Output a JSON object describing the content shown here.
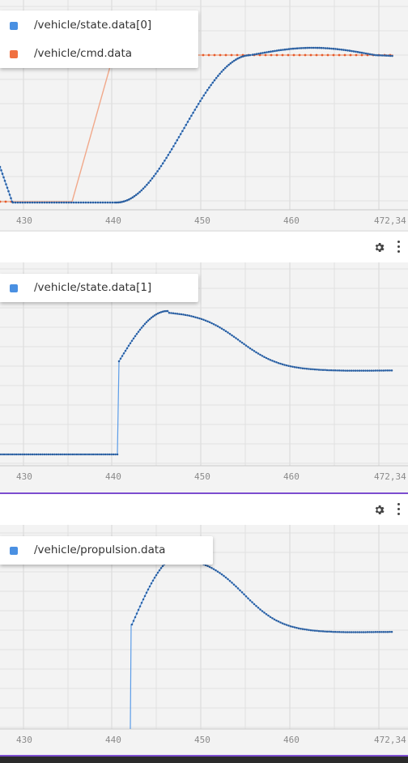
{
  "colors": {
    "state": "#2b5fa0",
    "state_line": "#5b9ce8",
    "cmd": "#e65a2a",
    "cmd_line": "#f1a98b",
    "swatch_state": "#4a90e2",
    "swatch_cmd": "#f07040",
    "grid": "#dcdcdc",
    "plot_bg": "#f3f3f3",
    "divider_purple": "#7c4dcf"
  },
  "panels": [
    {
      "legend": [
        {
          "label": "/vehicle/state.data[0]",
          "color": "#4a90e2"
        },
        {
          "label": "/vehicle/cmd.data",
          "color": "#f07040"
        }
      ],
      "x_ticks": [
        "430",
        "440",
        "450",
        "460",
        "472,34"
      ],
      "toolbar_icons": [
        "gear-icon",
        "more-vert-icon"
      ]
    },
    {
      "legend": [
        {
          "label": "/vehicle/state.data[1]",
          "color": "#4a90e2"
        }
      ],
      "x_ticks": [
        "430",
        "440",
        "450",
        "460",
        "472,34"
      ],
      "toolbar_icons": [
        "gear-icon",
        "more-vert-icon"
      ]
    },
    {
      "legend": [
        {
          "label": "/vehicle/propulsion.data",
          "color": "#4a90e2"
        }
      ],
      "x_ticks": [
        "430",
        "440",
        "450",
        "460",
        "472,34"
      ]
    }
  ]
}
